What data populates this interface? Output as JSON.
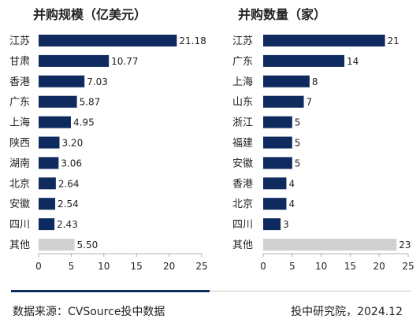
{
  "chart_data": [
    {
      "type": "bar",
      "orientation": "horizontal",
      "title": "并购规模（亿美元）",
      "categories": [
        "江苏",
        "甘肃",
        "香港",
        "广东",
        "上海",
        "陕西",
        "湖南",
        "北京",
        "安徽",
        "四川",
        "其他"
      ],
      "values": [
        21.18,
        10.77,
        7.03,
        5.87,
        4.95,
        3.2,
        3.06,
        2.64,
        2.54,
        2.43,
        5.5
      ],
      "value_labels": [
        "21.18",
        "10.77",
        "7.03",
        "5.87",
        "4.95",
        "3.20",
        "3.06",
        "2.64",
        "2.54",
        "2.43",
        "5.50"
      ],
      "highlight_last_as_other": true,
      "xlim": [
        0,
        25
      ],
      "xticks": [
        0,
        5,
        10,
        15,
        20,
        25
      ],
      "grid": false,
      "legend": "none"
    },
    {
      "type": "bar",
      "orientation": "horizontal",
      "title": "并购数量（家）",
      "categories": [
        "江苏",
        "广东",
        "上海",
        "山东",
        "浙江",
        "福建",
        "安徽",
        "香港",
        "北京",
        "四川",
        "其他"
      ],
      "values": [
        21,
        14,
        8,
        7,
        5,
        5,
        5,
        4,
        4,
        3,
        23
      ],
      "value_labels": [
        "21",
        "14",
        "8",
        "7",
        "5",
        "5",
        "5",
        "4",
        "4",
        "3",
        "23"
      ],
      "highlight_last_as_other": true,
      "xlim": [
        0,
        25
      ],
      "xticks": [
        0,
        5,
        10,
        15,
        20,
        25
      ],
      "grid": false,
      "legend": "none"
    }
  ],
  "colors": {
    "bar": "#0f2a5e",
    "bar_other": "#d0d0d0",
    "axis": "#b0b0b0",
    "divider_dark": "#0f2a5e",
    "divider_light": "#c8c8c8"
  },
  "footer": {
    "source": "数据来源：CVSource投中数据",
    "credit": "投中研究院，2024.12"
  }
}
